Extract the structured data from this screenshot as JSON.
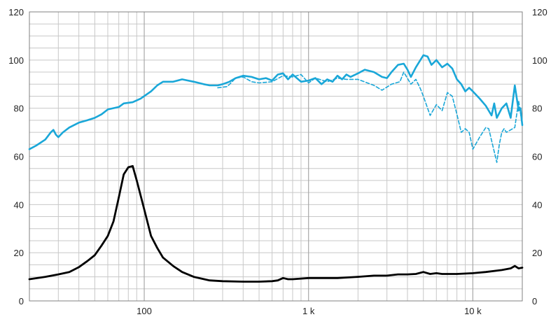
{
  "chart_data": {
    "type": "line",
    "title": "",
    "xlabel": "",
    "ylabel": "",
    "x_scale": "log",
    "xlim": [
      20,
      20000
    ],
    "ylim": [
      0,
      120
    ],
    "grid": true,
    "legend": "none",
    "y_ticks": [
      "0",
      "20",
      "40",
      "60",
      "80",
      "100",
      "120"
    ],
    "x_ticks": [
      {
        "value": 100,
        "label": "100"
      },
      {
        "value": 1000,
        "label": "1 k"
      },
      {
        "value": 10000,
        "label": "10 k"
      }
    ],
    "colors": {
      "spl": "#1aa7d8",
      "impedance": "#000000",
      "grid": "#c8c8c8",
      "frame": "#808080"
    },
    "series": [
      {
        "style": "solid",
        "color": "#1aa7d8",
        "points": [
          [
            20,
            63
          ],
          [
            22,
            64.5
          ],
          [
            25,
            67
          ],
          [
            27,
            70
          ],
          [
            28,
            71
          ],
          [
            29,
            69
          ],
          [
            30,
            68
          ],
          [
            32,
            70
          ],
          [
            35,
            72
          ],
          [
            40,
            74
          ],
          [
            45,
            75
          ],
          [
            50,
            76
          ],
          [
            55,
            77.5
          ],
          [
            60,
            79.5
          ],
          [
            70,
            80.5
          ],
          [
            75,
            82
          ],
          [
            85,
            82.5
          ],
          [
            95,
            84
          ],
          [
            110,
            87
          ],
          [
            120,
            89.5
          ],
          [
            130,
            91
          ],
          [
            150,
            91
          ],
          [
            170,
            92
          ],
          [
            200,
            91
          ],
          [
            230,
            90
          ],
          [
            250,
            89.5
          ],
          [
            280,
            89.5
          ],
          [
            300,
            90
          ],
          [
            330,
            91
          ],
          [
            360,
            92.5
          ],
          [
            400,
            93.5
          ],
          [
            450,
            93
          ],
          [
            500,
            92
          ],
          [
            550,
            92.5
          ],
          [
            600,
            91.5
          ],
          [
            650,
            94
          ],
          [
            700,
            94.5
          ],
          [
            750,
            92
          ],
          [
            800,
            94
          ],
          [
            900,
            91
          ],
          [
            1000,
            91.5
          ],
          [
            1100,
            92.5
          ],
          [
            1200,
            90
          ],
          [
            1300,
            92
          ],
          [
            1400,
            91
          ],
          [
            1500,
            93.5
          ],
          [
            1600,
            92
          ],
          [
            1700,
            94
          ],
          [
            1800,
            93
          ],
          [
            2000,
            94.5
          ],
          [
            2200,
            96
          ],
          [
            2500,
            95
          ],
          [
            2800,
            93
          ],
          [
            3000,
            92.5
          ],
          [
            3200,
            95
          ],
          [
            3500,
            98
          ],
          [
            3800,
            98.5
          ],
          [
            4000,
            96
          ],
          [
            4200,
            93
          ],
          [
            4500,
            97
          ],
          [
            5000,
            102
          ],
          [
            5300,
            101.5
          ],
          [
            5600,
            98
          ],
          [
            6000,
            100
          ],
          [
            6500,
            97
          ],
          [
            7000,
            98.5
          ],
          [
            7500,
            96.5
          ],
          [
            8000,
            92
          ],
          [
            8500,
            90
          ],
          [
            9000,
            87
          ],
          [
            9500,
            88.5
          ],
          [
            10000,
            87
          ],
          [
            11000,
            84
          ],
          [
            12000,
            81
          ],
          [
            13000,
            77
          ],
          [
            13500,
            82
          ],
          [
            14000,
            76
          ],
          [
            15000,
            80
          ],
          [
            16000,
            82
          ],
          [
            17000,
            76
          ],
          [
            18000,
            89.5
          ],
          [
            19000,
            79
          ],
          [
            19500,
            80
          ],
          [
            20000,
            73
          ]
        ]
      },
      {
        "style": "dashed",
        "color": "#1aa7d8",
        "points": [
          [
            280,
            88.5
          ],
          [
            320,
            89
          ],
          [
            360,
            92.5
          ],
          [
            400,
            93
          ],
          [
            450,
            91
          ],
          [
            500,
            90.5
          ],
          [
            600,
            91
          ],
          [
            700,
            93.5
          ],
          [
            800,
            93
          ],
          [
            900,
            94
          ],
          [
            1000,
            90.5
          ],
          [
            1100,
            92.5
          ],
          [
            1300,
            91
          ],
          [
            1500,
            92.5
          ],
          [
            1700,
            92
          ],
          [
            2000,
            92
          ],
          [
            2500,
            89.5
          ],
          [
            2800,
            87.5
          ],
          [
            3200,
            90
          ],
          [
            3600,
            91
          ],
          [
            3800,
            95
          ],
          [
            4200,
            90
          ],
          [
            4500,
            92
          ],
          [
            4800,
            88
          ],
          [
            5000,
            85
          ],
          [
            5500,
            77
          ],
          [
            6000,
            81.5
          ],
          [
            6500,
            79
          ],
          [
            7000,
            86.5
          ],
          [
            7500,
            85
          ],
          [
            8000,
            77.5
          ],
          [
            8500,
            70
          ],
          [
            9000,
            71.5
          ],
          [
            9500,
            70
          ],
          [
            10000,
            63
          ],
          [
            11000,
            68
          ],
          [
            12000,
            72
          ],
          [
            12500,
            71.5
          ],
          [
            13500,
            62
          ],
          [
            14000,
            57.5
          ],
          [
            14500,
            65
          ],
          [
            15000,
            70
          ],
          [
            15500,
            71.5
          ],
          [
            16000,
            70
          ],
          [
            17000,
            71
          ],
          [
            18000,
            72
          ],
          [
            19000,
            83
          ],
          [
            20000,
            73
          ]
        ]
      },
      {
        "style": "solid",
        "color": "#000000",
        "points": [
          [
            20,
            9
          ],
          [
            25,
            10
          ],
          [
            30,
            11
          ],
          [
            35,
            12
          ],
          [
            40,
            14
          ],
          [
            45,
            16.5
          ],
          [
            50,
            19
          ],
          [
            55,
            23
          ],
          [
            60,
            27
          ],
          [
            65,
            33
          ],
          [
            70,
            43
          ],
          [
            75,
            52.5
          ],
          [
            80,
            55.5
          ],
          [
            85,
            56
          ],
          [
            90,
            50
          ],
          [
            100,
            38
          ],
          [
            110,
            27
          ],
          [
            120,
            22
          ],
          [
            130,
            18
          ],
          [
            150,
            14.5
          ],
          [
            170,
            12
          ],
          [
            200,
            10
          ],
          [
            250,
            8.5
          ],
          [
            300,
            8.2
          ],
          [
            400,
            8
          ],
          [
            500,
            8
          ],
          [
            600,
            8.2
          ],
          [
            650,
            8.5
          ],
          [
            700,
            9.5
          ],
          [
            750,
            9
          ],
          [
            800,
            9
          ],
          [
            1000,
            9.5
          ],
          [
            1500,
            9.5
          ],
          [
            2000,
            10
          ],
          [
            2500,
            10.5
          ],
          [
            3000,
            10.5
          ],
          [
            3500,
            11
          ],
          [
            4000,
            11
          ],
          [
            4500,
            11.2
          ],
          [
            5000,
            12
          ],
          [
            5500,
            11.2
          ],
          [
            6000,
            11.5
          ],
          [
            6500,
            11.2
          ],
          [
            7000,
            11.2
          ],
          [
            8000,
            11.2
          ],
          [
            10000,
            11.5
          ],
          [
            12000,
            12
          ],
          [
            15000,
            12.8
          ],
          [
            17000,
            13.5
          ],
          [
            18000,
            14.5
          ],
          [
            19000,
            13.5
          ],
          [
            20000,
            13.8
          ]
        ]
      }
    ]
  }
}
